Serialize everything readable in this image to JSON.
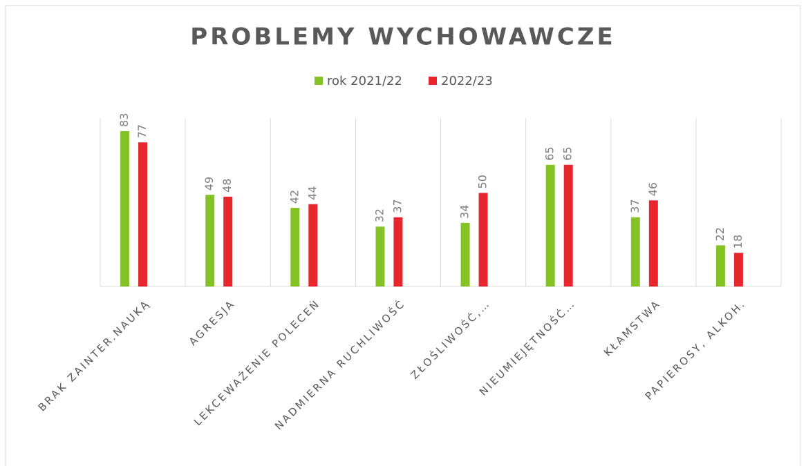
{
  "chart_data": {
    "type": "bar",
    "title": "PROBLEMY WYCHOWAWCZE",
    "categories": [
      "BRAK ZAINTER.NAUKĄ",
      "AGRESJA",
      "LEKCEWAŻENIE POLECEŃ",
      "NADMIERNA RUCHLIWOŚĆ",
      "ZŁOŚLIWOŚĆ,…",
      "NIEUMIEJĘTNOŚĆ…",
      "KŁAMSTWA",
      "PAPIEROSY, ALKOH."
    ],
    "series": [
      {
        "name": "rok 2021/22",
        "color": "#84c225",
        "values": [
          83,
          49,
          42,
          32,
          34,
          65,
          37,
          22
        ]
      },
      {
        "name": "2022/23",
        "color": "#e8262e",
        "values": [
          77,
          48,
          44,
          37,
          50,
          65,
          46,
          18
        ]
      }
    ],
    "ylim": [
      0,
      90
    ],
    "legend": "top"
  }
}
